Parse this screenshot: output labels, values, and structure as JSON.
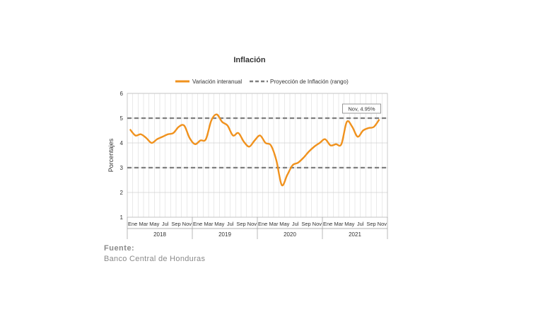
{
  "chart_data": {
    "type": "line",
    "title": "Inflación",
    "ylabel": "Porcentajes",
    "xlabel": "",
    "ylim": [
      1,
      6
    ],
    "yticks": [
      1,
      2,
      3,
      4,
      5,
      6
    ],
    "grid": true,
    "legend_position": "top",
    "month_labels": [
      "Ene",
      "Mar",
      "May",
      "Jul",
      "Sep",
      "Nov"
    ],
    "years": [
      "2018",
      "2019",
      "2020",
      "2021"
    ],
    "series": [
      {
        "name": "Variación interanual",
        "color": "#f0921e",
        "values": [
          4.55,
          4.3,
          4.35,
          4.2,
          4.0,
          4.15,
          4.25,
          4.35,
          4.4,
          4.65,
          4.7,
          4.2,
          3.95,
          4.1,
          4.15,
          4.9,
          5.15,
          4.85,
          4.7,
          4.3,
          4.4,
          4.05,
          3.85,
          4.1,
          4.3,
          4.0,
          3.9,
          3.3,
          2.3,
          2.7,
          3.1,
          3.2,
          3.4,
          3.65,
          3.85,
          4.0,
          4.15,
          3.9,
          3.95,
          3.95,
          4.85,
          4.65,
          4.25,
          4.5,
          4.6,
          4.65,
          4.95
        ]
      },
      {
        "name": "Proyección de Inflación (rango)",
        "color": "#7f7f7f",
        "dashed": true,
        "bounds": [
          3,
          5
        ]
      }
    ],
    "annotation": "Nov, 4.95%"
  },
  "source": {
    "title": "Fuente:",
    "text": "Banco Central de Honduras"
  }
}
